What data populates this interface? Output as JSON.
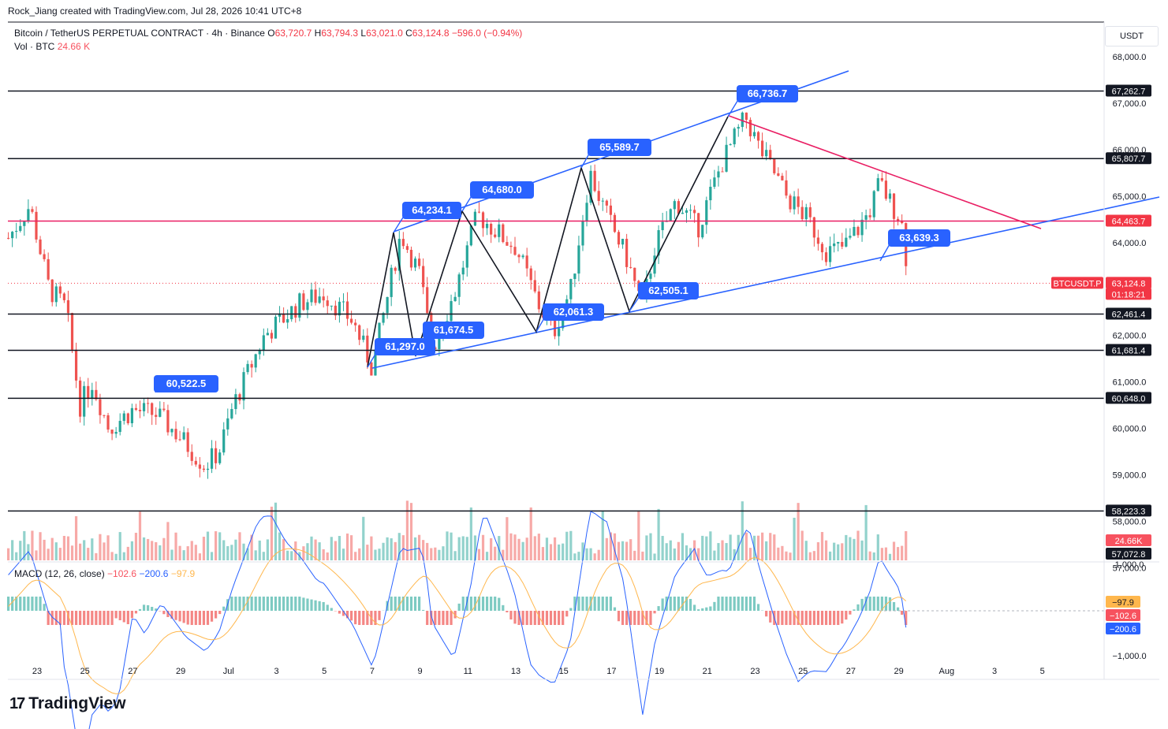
{
  "header": {
    "created_by": "Rock_Jiang created with TradingView.com, Jul 28, 2026 10:41 UTC+8"
  },
  "symbol": {
    "name": "Bitcoin / TetherUS PERPETUAL CONTRACT · 4h · Binance",
    "o_label": "O",
    "o": "63,720.7",
    "h_label": "H",
    "h": "63,794.3",
    "l_label": "L",
    "l": "63,021.0",
    "c_label": "C",
    "c": "63,124.8",
    "chg": "−596.0 (−0.94%)"
  },
  "volume": {
    "label": "Vol · BTC",
    "value": "24.66 K"
  },
  "macd": {
    "label": "MACD (12, 26, close)",
    "v1": "−102.6",
    "v2": "−200.6",
    "v3": "−97.9"
  },
  "price_axis": {
    "unit": "USDT",
    "ticks": [
      "68,000.0",
      "67,000.0",
      "66,000.0",
      "65,000.0",
      "64,000.0",
      "62,000.0",
      "61,000.0",
      "60,000.0",
      "59,000.0",
      "58,000.0",
      "57,000.0"
    ]
  },
  "macd_axis": {
    "ticks": [
      "1,000.0",
      "−1,000.0"
    ]
  },
  "price_labels": [
    {
      "text": "67,262.7",
      "color": "#131722"
    },
    {
      "text": "65,807.7",
      "color": "#131722"
    },
    {
      "text": "64,463.7",
      "color": "#f23645"
    },
    {
      "text": "63,124.8",
      "color": "#f23645"
    },
    {
      "text": "01:18:21",
      "color": "#f23645"
    },
    {
      "text": "62,461.4",
      "color": "#131722"
    },
    {
      "text": "61,681.4",
      "color": "#131722"
    },
    {
      "text": "60,648.0",
      "color": "#131722"
    },
    {
      "text": "58,223.3",
      "color": "#131722"
    },
    {
      "text": "24.66K",
      "color": "#f7525f"
    },
    {
      "text": "57,072.8",
      "color": "#131722"
    }
  ],
  "symbol_tag": "BTCUSDT.P",
  "macd_labels": [
    {
      "text": "−97.9",
      "color": "#ffb74d"
    },
    {
      "text": "−102.6",
      "color": "#f7525f"
    },
    {
      "text": "−200.6",
      "color": "#2962ff"
    }
  ],
  "x_axis": [
    "23",
    "25",
    "27",
    "29",
    "Jul",
    "3",
    "5",
    "7",
    "9",
    "11",
    "13",
    "15",
    "17",
    "19",
    "21",
    "23",
    "25",
    "27",
    "29",
    "Aug",
    "3",
    "5"
  ],
  "callouts": [
    "66,736.7",
    "65,589.7",
    "64,680.0",
    "64,234.1",
    "63,639.3",
    "62,505.1",
    "62,061.3",
    "61,674.5",
    "61,297.0",
    "60,522.5"
  ],
  "colors": {
    "up": "#26a69a",
    "down": "#ef5350",
    "trend": "#2962ff",
    "resist": "#e91e63",
    "accent": "#2962ff"
  },
  "brand": "TradingView"
}
